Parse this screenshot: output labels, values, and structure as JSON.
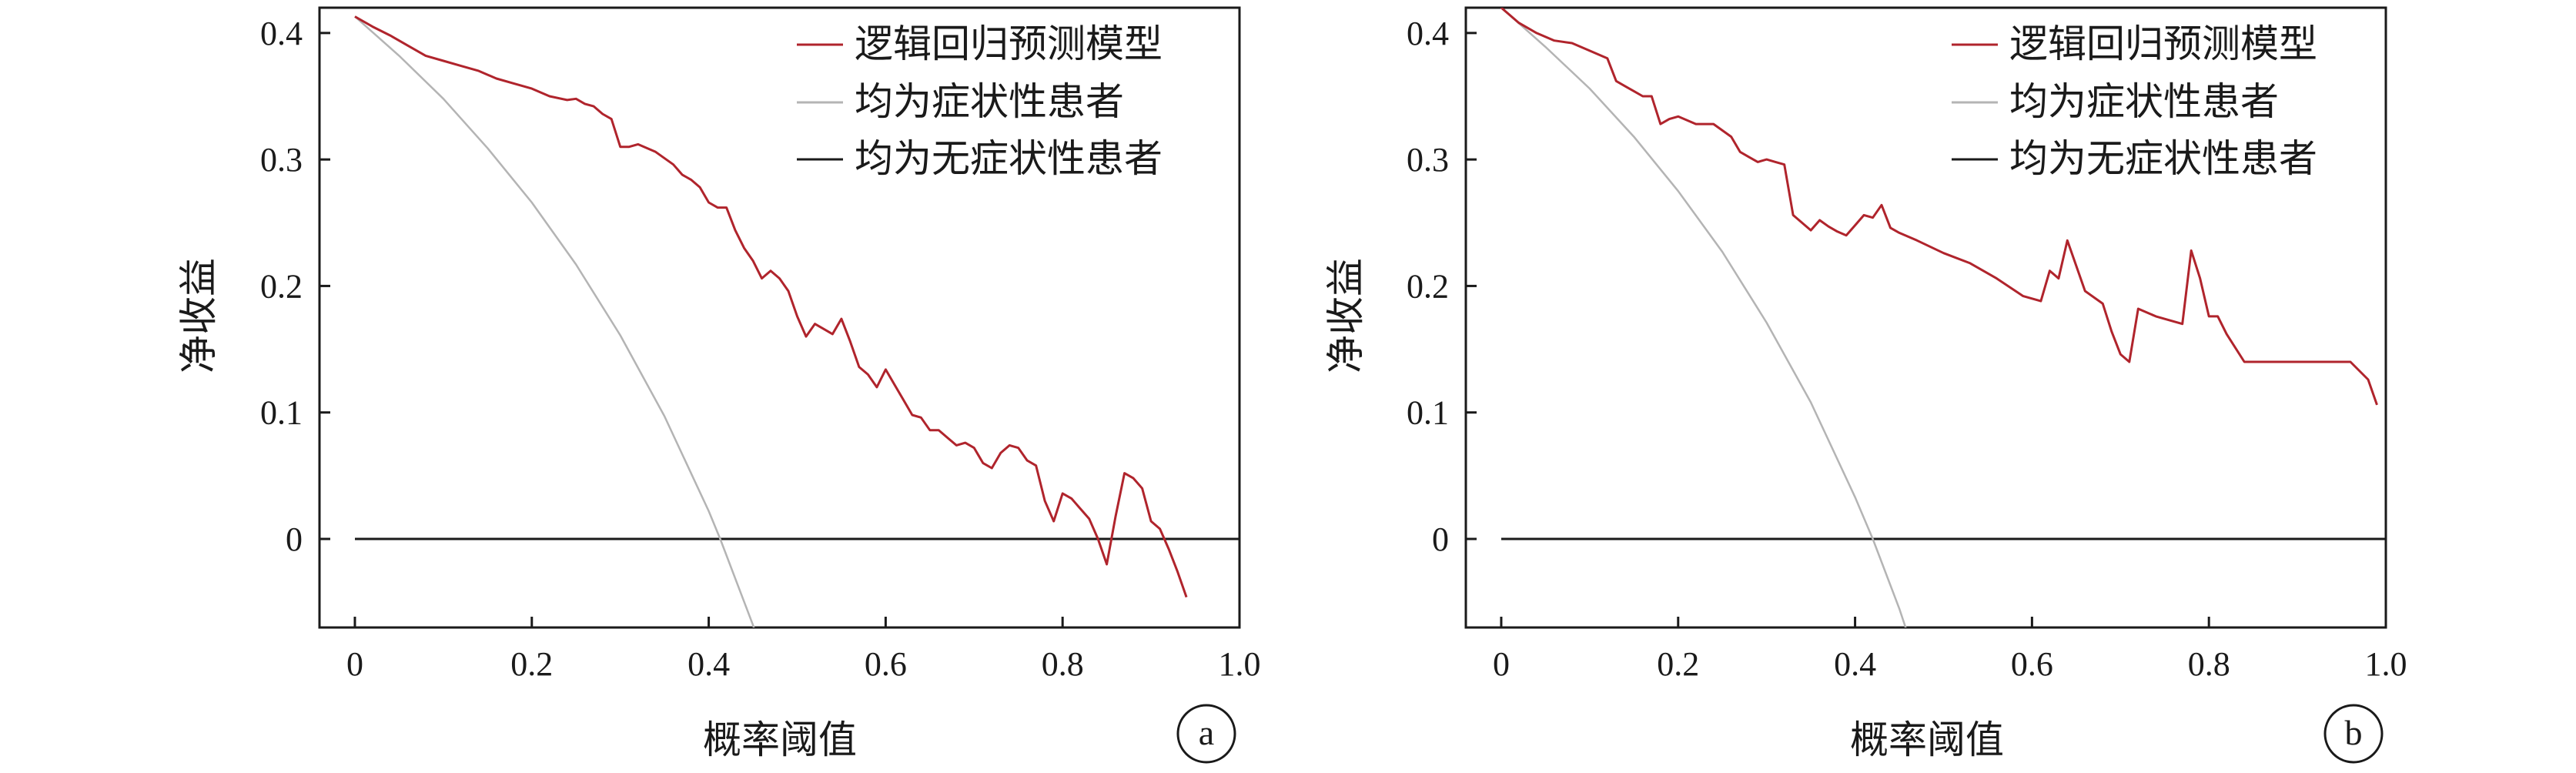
{
  "colors": {
    "model": "#b0242c",
    "treat_all": "#b4b4b4",
    "treat_none": "#1a1a1a",
    "axes": "#1a1a1a"
  },
  "chart_data": [
    {
      "panel_label": "a",
      "type": "line",
      "xlabel": "概率阈值",
      "ylabel": "净收益",
      "xlim": [
        -0.04,
        1.0
      ],
      "ylim": [
        -0.07,
        0.42
      ],
      "xticks": [
        0,
        0.2,
        0.4,
        0.6,
        0.8,
        1.0
      ],
      "xtick_labels": [
        "0",
        "0.2",
        "0.4",
        "0.6",
        "0.8",
        "1.0"
      ],
      "yticks": [
        0,
        0.1,
        0.2,
        0.3,
        0.4
      ],
      "ytick_labels": [
        "0",
        "0.1",
        "0.2",
        "0.3",
        "0.4"
      ],
      "legend": [
        "逻辑回归预测模型",
        "均为症状性患者",
        "均为无症状性患者"
      ],
      "legend_position": "top-right",
      "prevalence": 0.413,
      "series": [
        {
          "name": "逻辑回归预测模型",
          "x": [
            0,
            0.02,
            0.04,
            0.06,
            0.08,
            0.1,
            0.12,
            0.14,
            0.16,
            0.18,
            0.2,
            0.22,
            0.24,
            0.25,
            0.26,
            0.27,
            0.28,
            0.29,
            0.3,
            0.31,
            0.32,
            0.34,
            0.36,
            0.37,
            0.38,
            0.39,
            0.4,
            0.41,
            0.42,
            0.43,
            0.44,
            0.45,
            0.46,
            0.47,
            0.48,
            0.49,
            0.5,
            0.51,
            0.52,
            0.53,
            0.54,
            0.55,
            0.56,
            0.57,
            0.58,
            0.59,
            0.6,
            0.61,
            0.62,
            0.63,
            0.64,
            0.65,
            0.66,
            0.67,
            0.68,
            0.69,
            0.7,
            0.71,
            0.72,
            0.73,
            0.74,
            0.75,
            0.76,
            0.77,
            0.78,
            0.79,
            0.8,
            0.81,
            0.82,
            0.83,
            0.84,
            0.85,
            0.86,
            0.87,
            0.88,
            0.89,
            0.9,
            0.91,
            0.92,
            0.93,
            0.94
          ],
          "values": [
            0.413,
            0.405,
            0.398,
            0.39,
            0.382,
            0.378,
            0.374,
            0.37,
            0.364,
            0.36,
            0.356,
            0.35,
            0.347,
            0.348,
            0.344,
            0.342,
            0.336,
            0.332,
            0.31,
            0.31,
            0.312,
            0.306,
            0.296,
            0.288,
            0.284,
            0.278,
            0.266,
            0.262,
            0.262,
            0.244,
            0.23,
            0.22,
            0.206,
            0.212,
            0.206,
            0.196,
            0.176,
            0.16,
            0.17,
            0.166,
            0.162,
            0.174,
            0.156,
            0.136,
            0.13,
            0.12,
            0.134,
            0.122,
            0.11,
            0.098,
            0.096,
            0.086,
            0.086,
            0.08,
            0.074,
            0.076,
            0.072,
            0.06,
            0.056,
            0.068,
            0.074,
            0.072,
            0.062,
            0.058,
            0.03,
            0.014,
            0.036,
            0.032,
            0.024,
            0.016,
            0.0,
            -0.02,
            0.018,
            0.052,
            0.048,
            0.04,
            0.014,
            0.008,
            -0.008,
            -0.026,
            -0.046
          ]
        },
        {
          "name": "均为症状性患者",
          "x": [
            0,
            0.05,
            0.1,
            0.15,
            0.2,
            0.25,
            0.3,
            0.35,
            0.4,
            0.413,
            0.45,
            0.5
          ],
          "values": [
            0.413,
            0.382,
            0.348,
            0.309,
            0.266,
            0.217,
            0.161,
            0.097,
            0.022,
            0.0,
            -0.068,
            -0.174
          ]
        },
        {
          "name": "均为无症状性患者",
          "x": [
            0,
            1.0
          ],
          "values": [
            0,
            0
          ]
        }
      ]
    },
    {
      "panel_label": "b",
      "type": "line",
      "xlabel": "概率阈值",
      "ylabel": "净收益",
      "xlim": [
        -0.04,
        1.0
      ],
      "ylim": [
        -0.07,
        0.42
      ],
      "xticks": [
        0,
        0.2,
        0.4,
        0.6,
        0.8,
        1.0
      ],
      "xtick_labels": [
        "0",
        "0.2",
        "0.4",
        "0.6",
        "0.8",
        "1.0"
      ],
      "yticks": [
        0,
        0.1,
        0.2,
        0.3,
        0.4
      ],
      "ytick_labels": [
        "0",
        "0.1",
        "0.2",
        "0.3",
        "0.4"
      ],
      "legend": [
        "逻辑回归预测模型",
        "均为症状性患者",
        "均为无症状性患者"
      ],
      "legend_position": "top-right",
      "prevalence": 0.42,
      "series": [
        {
          "name": "逻辑回归预测模型",
          "x": [
            0,
            0.02,
            0.04,
            0.06,
            0.08,
            0.1,
            0.12,
            0.13,
            0.14,
            0.15,
            0.16,
            0.17,
            0.18,
            0.19,
            0.2,
            0.22,
            0.24,
            0.25,
            0.26,
            0.27,
            0.28,
            0.29,
            0.3,
            0.31,
            0.32,
            0.33,
            0.35,
            0.36,
            0.37,
            0.38,
            0.39,
            0.4,
            0.41,
            0.42,
            0.43,
            0.44,
            0.45,
            0.47,
            0.5,
            0.53,
            0.56,
            0.59,
            0.61,
            0.62,
            0.63,
            0.64,
            0.66,
            0.68,
            0.69,
            0.7,
            0.71,
            0.72,
            0.74,
            0.76,
            0.77,
            0.78,
            0.79,
            0.8,
            0.81,
            0.82,
            0.84,
            0.86,
            0.88,
            0.9,
            0.92,
            0.94,
            0.96,
            0.98,
            0.99
          ],
          "values": [
            0.42,
            0.408,
            0.4,
            0.394,
            0.392,
            0.386,
            0.38,
            0.362,
            0.358,
            0.354,
            0.35,
            0.35,
            0.328,
            0.332,
            0.334,
            0.328,
            0.328,
            0.323,
            0.318,
            0.306,
            0.302,
            0.298,
            0.3,
            0.298,
            0.296,
            0.256,
            0.244,
            0.252,
            0.247,
            0.243,
            0.24,
            0.248,
            0.256,
            0.254,
            0.264,
            0.246,
            0.242,
            0.236,
            0.226,
            0.218,
            0.206,
            0.192,
            0.188,
            0.212,
            0.206,
            0.236,
            0.196,
            0.186,
            0.164,
            0.146,
            0.14,
            0.182,
            0.176,
            0.172,
            0.17,
            0.228,
            0.206,
            0.176,
            0.176,
            0.162,
            0.14,
            0.14,
            0.14,
            0.14,
            0.14,
            0.14,
            0.14,
            0.126,
            0.106
          ]
        },
        {
          "name": "均为症状性患者",
          "x": [
            0,
            0.05,
            0.1,
            0.15,
            0.2,
            0.25,
            0.3,
            0.35,
            0.4,
            0.42,
            0.45,
            0.5
          ],
          "values": [
            0.42,
            0.389,
            0.356,
            0.318,
            0.275,
            0.227,
            0.171,
            0.108,
            0.033,
            0.0,
            -0.055,
            -0.16
          ]
        },
        {
          "name": "均为无症状性患者",
          "x": [
            0,
            1.0
          ],
          "values": [
            0,
            0
          ]
        }
      ]
    }
  ]
}
